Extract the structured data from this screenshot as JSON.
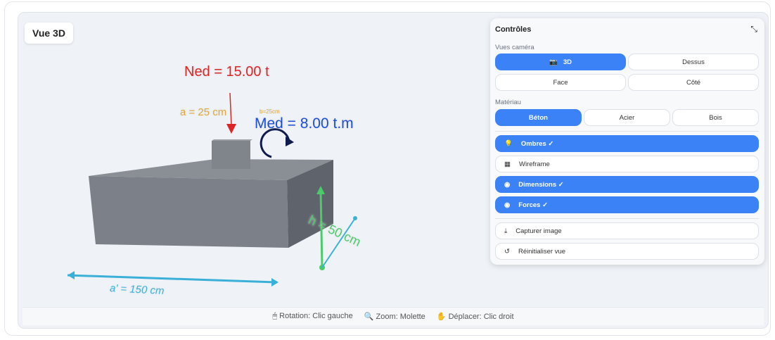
{
  "scene": {
    "title": "Vue 3D",
    "labels": {
      "ned": "Ned = 15.00 t",
      "med": "Med = 8.00 t.m",
      "a": "a = 25 cm",
      "b": "b=25cm",
      "h": "h = 50 cm",
      "a_prime": "a' = 150 cm"
    }
  },
  "controls": {
    "title": "Contrôles",
    "camera_label": "Vues caméra",
    "camera": [
      "3D",
      "Dessus",
      "Face",
      "Côté"
    ],
    "camera_selected": "3D",
    "material_label": "Matériau",
    "materials": [
      "Béton",
      "Acier",
      "Bois"
    ],
    "material_selected": "Béton",
    "toggles": [
      {
        "label": "Ombres ✓",
        "active": true,
        "icon": "lightbulb-icon"
      },
      {
        "label": "Wireframe",
        "active": false,
        "icon": "grid-icon"
      },
      {
        "label": "Dimensions ✓",
        "active": true,
        "icon": "eye-icon"
      },
      {
        "label": "Forces ✓",
        "active": true,
        "icon": "eye-icon"
      }
    ],
    "actions": [
      {
        "label": "Capturer image",
        "icon": "download-icon"
      },
      {
        "label": "Réinitialiser vue",
        "icon": "reset-icon"
      }
    ]
  },
  "footer": {
    "rotation": "Rotation: Clic gauche",
    "zoom": "Zoom: Molette",
    "pan": "Déplacer: Clic droit"
  },
  "colors": {
    "accent": "#3b82f6",
    "ned": "#dc2626",
    "med": "#1d4ed8",
    "dim": "#e0a83a",
    "h": "#4ccb6a",
    "a_prime": "#3ab0d8"
  }
}
